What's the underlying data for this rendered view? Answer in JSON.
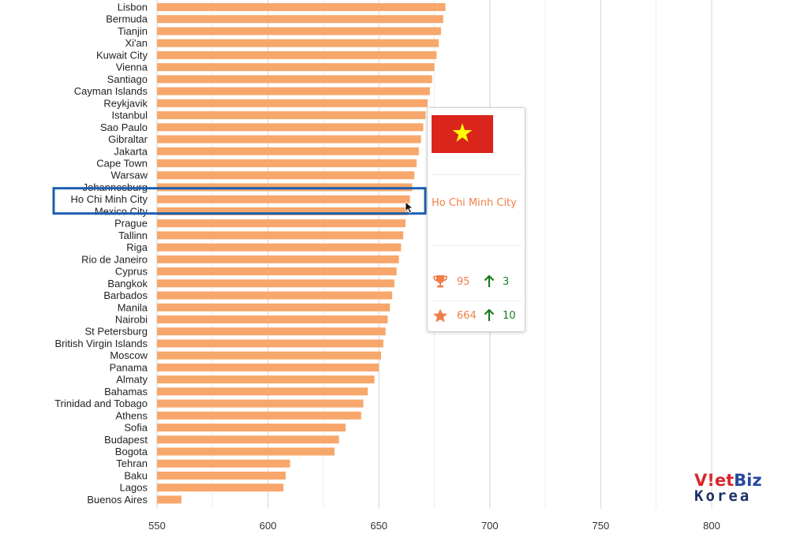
{
  "chart_data": {
    "type": "bar",
    "orientation": "horizontal",
    "categories": [
      "Lisbon",
      "Bermuda",
      "Tianjin",
      "Xi'an",
      "Kuwait City",
      "Vienna",
      "Santiago",
      "Cayman Islands",
      "Reykjavik",
      "Istanbul",
      "Sao Paulo",
      "Gibraltar",
      "Jakarta",
      "Cape Town",
      "Warsaw",
      "Johannesburg",
      "Ho Chi Minh City",
      "Mexico City",
      "Prague",
      "Tallinn",
      "Riga",
      "Rio de Janeiro",
      "Cyprus",
      "Bangkok",
      "Barbados",
      "Manila",
      "Nairobi",
      "St Petersburg",
      "British Virgin Islands",
      "Moscow",
      "Panama",
      "Almaty",
      "Bahamas",
      "Trinidad and Tobago",
      "Athens",
      "Sofia",
      "Budapest",
      "Bogota",
      "Tehran",
      "Baku",
      "Lagos",
      "Buenos Aires"
    ],
    "values": [
      680,
      679,
      678,
      677,
      676,
      675,
      674,
      673,
      672,
      671,
      670,
      669,
      668,
      667,
      666,
      665,
      664,
      663,
      662,
      661,
      660,
      659,
      658,
      657,
      656,
      655,
      654,
      653,
      652,
      651,
      650,
      648,
      645,
      643,
      642,
      635,
      632,
      630,
      610,
      608,
      607,
      561
    ],
    "xlim": [
      550,
      800
    ],
    "xticks": [
      550,
      600,
      650,
      700,
      750,
      800
    ],
    "grid": true,
    "bar_color": "#f7a76b",
    "highlighted_category": "Ho Chi Minh City",
    "highlight_box_color": "#1c5fb0"
  },
  "tooltip": {
    "flag": "vietnam-flag",
    "city": "Ho Chi Minh City",
    "rank": "95",
    "rank_change": "3",
    "score": "664",
    "score_change": "10",
    "accent_color": "#ef7f49",
    "up_color": "#1c7a20"
  },
  "logo": {
    "line1_a": "V!et",
    "line1_b": "Biz",
    "line2": "Korea"
  }
}
